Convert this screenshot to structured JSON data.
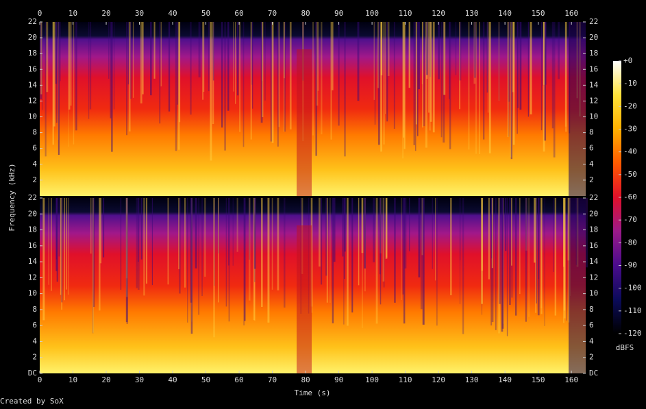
{
  "chart_data": {
    "type": "spectrogram",
    "x_label": "Time (s)",
    "y_label": "Frequency (kHz)",
    "footer": "Created by SoX",
    "xlim": [
      0,
      164.3
    ],
    "xticks": [
      0,
      10,
      20,
      30,
      40,
      50,
      60,
      70,
      80,
      90,
      100,
      110,
      120,
      130,
      140,
      150,
      160
    ],
    "panels": [
      {
        "ylim": [
          0,
          22
        ],
        "yticks": [
          2,
          4,
          6,
          8,
          10,
          12,
          14,
          16,
          18,
          20,
          22
        ]
      },
      {
        "ylim": [
          0,
          22
        ],
        "yticks": [
          {
            "value": 0,
            "label": "DC"
          },
          2,
          4,
          6,
          8,
          10,
          12,
          14,
          16,
          18,
          20,
          22
        ]
      }
    ],
    "colorbar": {
      "label": "dBFS",
      "lim": [
        -120,
        0
      ],
      "ticks": [
        {
          "value": 0,
          "label": "+0"
        },
        -10,
        -20,
        -30,
        -40,
        -50,
        -60,
        -70,
        -80,
        -90,
        -100,
        -110,
        -120
      ],
      "colors": [
        "#000000",
        "#0b0b5a",
        "#4a0c8c",
        "#9b1a8a",
        "#e0102a",
        "#ff5a00",
        "#ffb000",
        "#ffe23a",
        "#ffffff"
      ]
    }
  }
}
